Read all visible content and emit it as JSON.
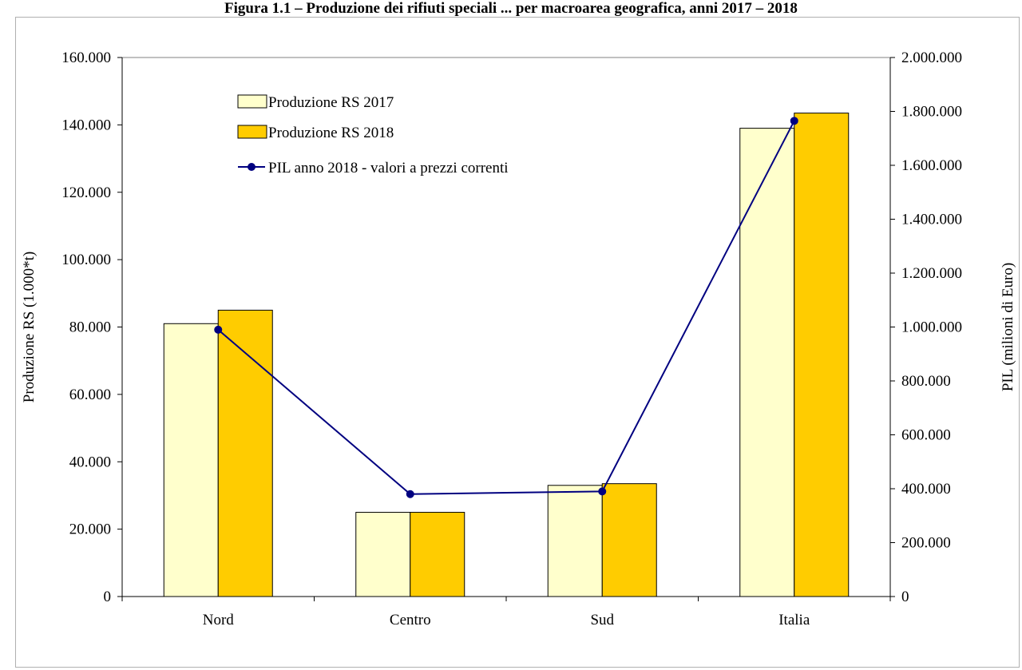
{
  "title": "Figura 1.1 – Produzione dei rifiuti speciali ... per macroarea geografica, anni 2017 – 2018",
  "chart_data": {
    "type": "bar",
    "categories": [
      "Nord",
      "Centro",
      "Sud",
      "Italia"
    ],
    "series": [
      {
        "name": "Produzione RS 2017",
        "type": "bar",
        "axis": "left",
        "color": "#ffffcc",
        "values": [
          81000,
          25000,
          33000,
          139000
        ]
      },
      {
        "name": "Produzione RS 2018",
        "type": "bar",
        "axis": "left",
        "color": "#ffcc00",
        "values": [
          85000,
          25000,
          33500,
          143500
        ]
      },
      {
        "name": "PIL anno 2018 - valori a prezzi correnti",
        "type": "line",
        "axis": "right",
        "color": "#000080",
        "values": [
          990000,
          380000,
          390000,
          1765000
        ]
      }
    ],
    "ylabel": "Produzione RS (1.000*t)",
    "y2label": "PIL (milioni di Euro)",
    "ylim": [
      0,
      160000
    ],
    "y2lim": [
      0,
      2000000
    ],
    "yticks": [
      "0",
      "20.000",
      "40.000",
      "60.000",
      "80.000",
      "100.000",
      "120.000",
      "140.000",
      "160.000"
    ],
    "y2ticks": [
      "0",
      "200.000",
      "400.000",
      "600.000",
      "800.000",
      "1.000.000",
      "1.200.000",
      "1.400.000",
      "1.600.000",
      "1.800.000",
      "2.000.000"
    ],
    "grid": false,
    "legend": "top-left"
  }
}
